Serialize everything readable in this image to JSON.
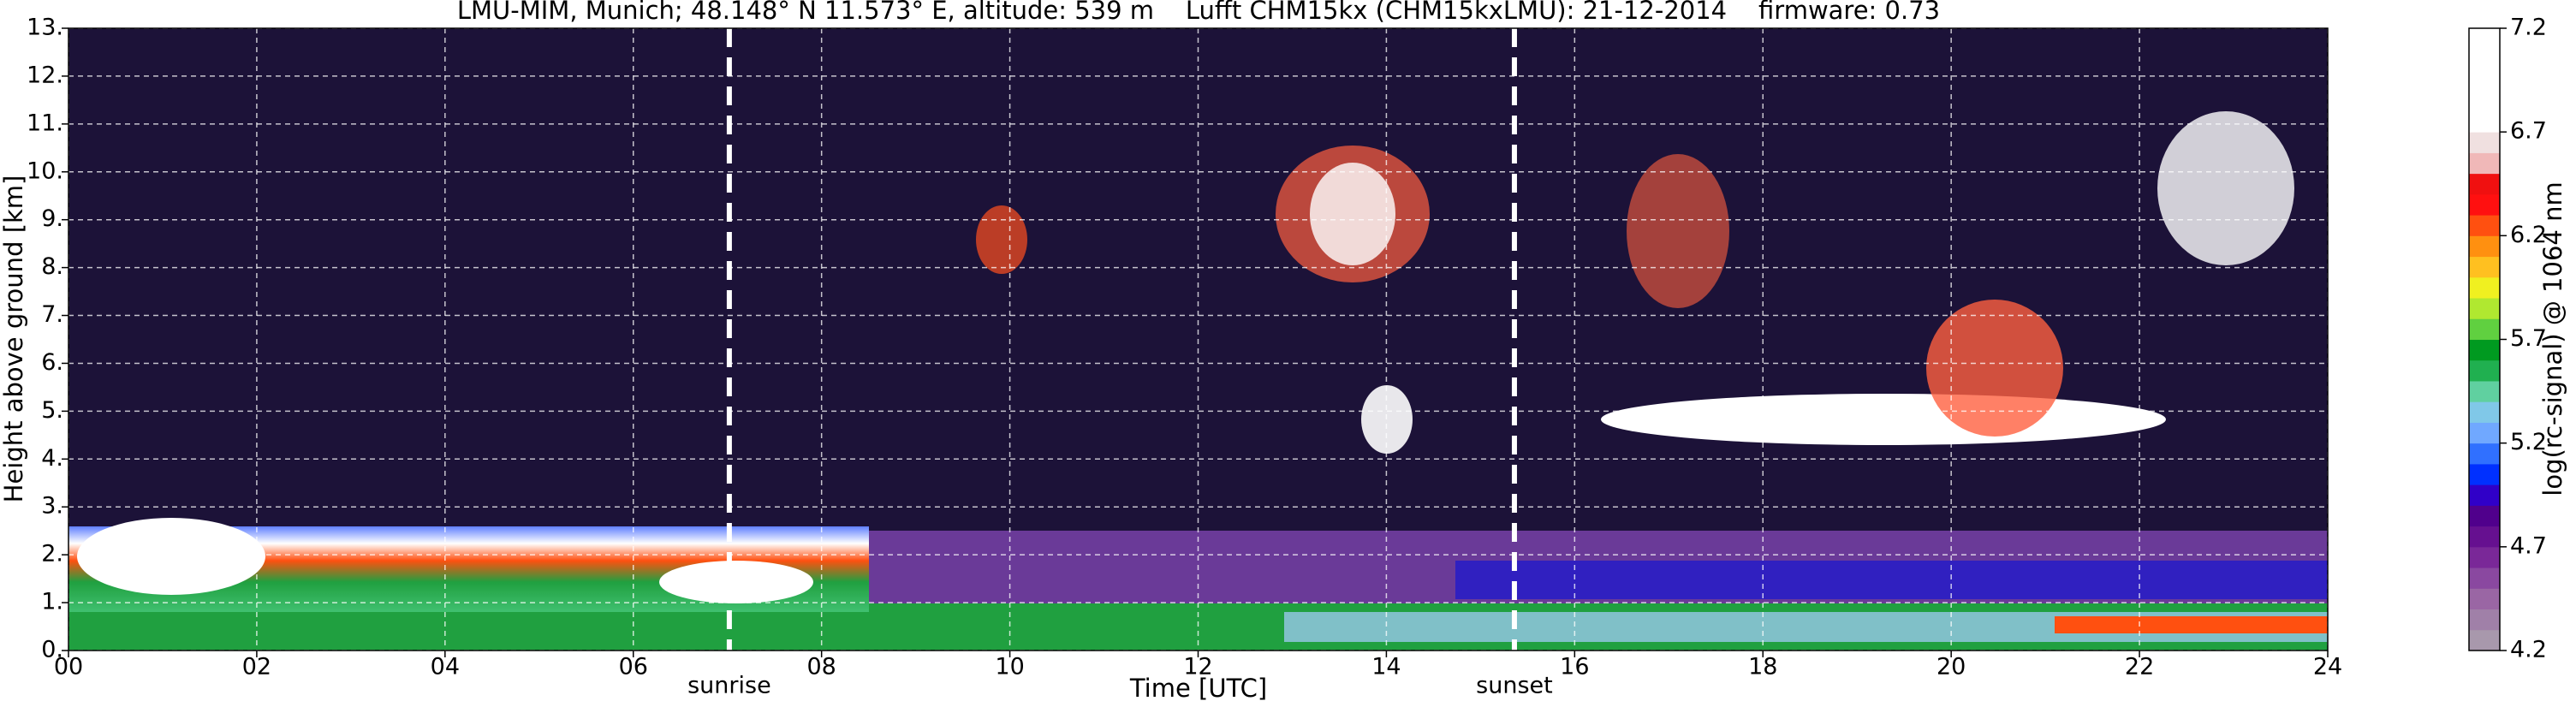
{
  "chart_data": {
    "type": "heatmap",
    "title": "LMU-MIM, Munich; 48.148° N 11.573° E, altitude: 539 m    Lufft CHM15kx (CHM15kxLMU): 21-12-2014    firmware: 0.73",
    "x_label": "Time [UTC]",
    "y_label": "Height above ground [km]",
    "xlim": [
      0,
      24
    ],
    "xticks": [
      {
        "value": 0,
        "label": "00"
      },
      {
        "value": 2,
        "label": "02"
      },
      {
        "value": 4,
        "label": "04"
      },
      {
        "value": 6,
        "label": "06"
      },
      {
        "value": 8,
        "label": "08"
      },
      10,
      12,
      14,
      16,
      18,
      20,
      22,
      24
    ],
    "ylim": [
      0,
      13
    ],
    "yticks": [
      {
        "value": 0,
        "label": "0."
      },
      {
        "value": 1,
        "label": "1."
      },
      {
        "value": 2,
        "label": "2."
      },
      {
        "value": 3,
        "label": "3."
      },
      {
        "value": 4,
        "label": "4."
      },
      {
        "value": 5,
        "label": "5."
      },
      {
        "value": 6,
        "label": "6."
      },
      {
        "value": 7,
        "label": "7."
      },
      {
        "value": 8,
        "label": "8."
      },
      {
        "value": 9,
        "label": "9."
      },
      {
        "value": 10,
        "label": "10."
      },
      {
        "value": 11,
        "label": "11."
      },
      {
        "value": 12,
        "label": "12."
      },
      {
        "value": 13,
        "label": "13."
      }
    ],
    "grid": true,
    "annotations": [
      {
        "text": "sunrise",
        "x": 7.02
      },
      {
        "text": "sunset",
        "x": 15.36
      }
    ],
    "colorbar": {
      "label": "log(rc-signal) @ 1064 nm",
      "lim": [
        4.2,
        7.2
      ],
      "ticks": [
        4.2,
        4.7,
        5.2,
        5.7,
        6.2,
        6.7,
        7.2
      ],
      "colors": [
        "#a898ac",
        "#a080a8",
        "#9a66a4",
        "#8a48a0",
        "#7a2898",
        "#661090",
        "#50008c",
        "#3000c8",
        "#0030ff",
        "#3070ff",
        "#70a8ff",
        "#80c8e8",
        "#60d0a0",
        "#20b050",
        "#009a20",
        "#60d040",
        "#b0e830",
        "#f0f020",
        "#ffc020",
        "#ff9010",
        "#ff5010",
        "#ff1010",
        "#f01010",
        "#f0b8b8",
        "#f0e0e0",
        "#ffffff",
        "#ffffff",
        "#ffffff",
        "#ffffff",
        "#ffffff"
      ]
    }
  }
}
